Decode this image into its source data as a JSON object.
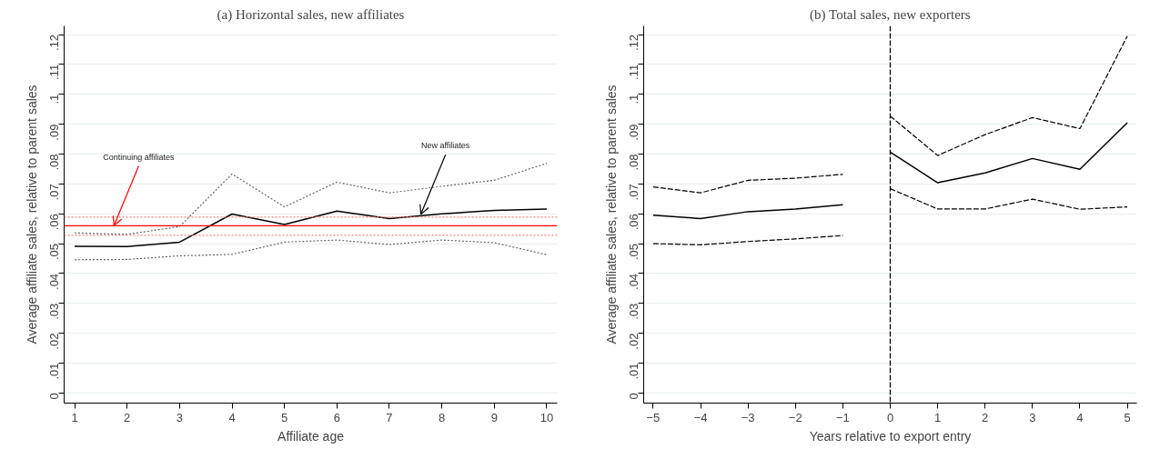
{
  "chart_data": [
    {
      "type": "line",
      "title": "(a) Horizontal sales, new affiliates",
      "xlabel": "Affiliate age",
      "ylabel": "Average affiliate sales, relative to parent sales",
      "x": [
        1,
        2,
        3,
        4,
        5,
        6,
        7,
        8,
        9,
        10
      ],
      "series": [
        {
          "color": "#000000",
          "line_style": "solid",
          "values": [
            0.0491,
            0.049,
            0.0505,
            0.0599,
            0.0564,
            0.0609,
            0.0584,
            0.06,
            0.0611,
            0.0616
          ]
        },
        {
          "color": "#666666",
          "line_style": "dotted",
          "values": [
            0.0536,
            0.0531,
            0.0557,
            0.0733,
            0.0623,
            0.0706,
            0.067,
            0.0692,
            0.0712,
            0.0769
          ]
        },
        {
          "color": "#666666",
          "line_style": "dotted",
          "values": [
            0.0446,
            0.0447,
            0.0459,
            0.0464,
            0.0505,
            0.0512,
            0.0497,
            0.0512,
            0.0503,
            0.0463
          ]
        }
      ],
      "ref_lines": [
        {
          "axis": "y",
          "value": 0.056,
          "color": "#ff0000",
          "line_style": "solid"
        },
        {
          "axis": "y",
          "value": 0.0589,
          "color": "#ff8080",
          "line_style": "dotted"
        },
        {
          "axis": "y",
          "value": 0.0528,
          "color": "#ff8080",
          "line_style": "dotted"
        }
      ],
      "annotations": [
        {
          "text": "Continuing affiliates",
          "x": 1.75,
          "y": 0.056
        },
        {
          "text": "New affiliates",
          "x": 7.6,
          "y": 0.0598
        }
      ],
      "xlim": [
        0.8,
        10.2
      ],
      "xticks": [
        1,
        2,
        3,
        4,
        5,
        6,
        7,
        8,
        9,
        10
      ],
      "ylim": [
        -0.0034,
        0.1229
      ],
      "yticks": [
        0,
        {
          "value": 0.01,
          "label": ".01"
        },
        {
          "value": 0.02,
          "label": ".02"
        },
        {
          "value": 0.03,
          "label": ".03"
        },
        {
          "value": 0.04,
          "label": ".04"
        },
        {
          "value": 0.05,
          "label": ".05"
        },
        {
          "value": 0.06,
          "label": ".06"
        },
        {
          "value": 0.07,
          "label": ".07"
        },
        {
          "value": 0.08,
          "label": ".08"
        },
        {
          "value": 0.09,
          "label": ".09"
        },
        {
          "value": 0.1,
          "label": ".1"
        },
        {
          "value": 0.11,
          "label": ".11"
        },
        {
          "value": 0.12,
          "label": ".12"
        }
      ],
      "grid": "y",
      "marker": "none"
    },
    {
      "type": "line",
      "title": "(b) Total sales, new exporters",
      "xlabel": "Years relative to export entry",
      "ylabel": "Average affiliate sales, relative to parent sales",
      "series": [
        {
          "color": "#000000",
          "line_style": "solid",
          "x": [
            -5,
            -4,
            -3,
            -2,
            -1
          ],
          "values": [
            0.0595,
            0.0584,
            0.0607,
            0.0616,
            0.063
          ]
        },
        {
          "color": "#000000",
          "line_style": "dashed",
          "x": [
            -5,
            -4,
            -3,
            -2,
            -1
          ],
          "values": [
            0.069,
            0.067,
            0.0712,
            0.0719,
            0.0732
          ]
        },
        {
          "color": "#000000",
          "line_style": "dashed",
          "x": [
            -5,
            -4,
            -3,
            -2,
            -1
          ],
          "values": [
            0.05,
            0.0496,
            0.0507,
            0.0516,
            0.0527
          ]
        },
        {
          "color": "#000000",
          "line_style": "solid",
          "x": [
            0,
            1,
            2,
            3,
            4,
            5
          ],
          "values": [
            0.0806,
            0.0704,
            0.0737,
            0.0785,
            0.0749,
            0.0905
          ]
        },
        {
          "color": "#000000",
          "line_style": "dashed",
          "x": [
            0,
            1,
            2,
            3,
            4,
            5
          ],
          "values": [
            0.0927,
            0.0795,
            0.0865,
            0.0922,
            0.0885,
            0.1195
          ]
        },
        {
          "color": "#000000",
          "line_style": "dashed",
          "x": [
            0,
            1,
            2,
            3,
            4,
            5
          ],
          "values": [
            0.0684,
            0.0616,
            0.0616,
            0.0649,
            0.0615,
            0.0623
          ]
        }
      ],
      "ref_lines": [
        {
          "axis": "x",
          "value": 0,
          "color": "#000000",
          "line_style": "dashed"
        }
      ],
      "xlim": [
        -5.2,
        5.2
      ],
      "xticks": [
        {
          "value": -5,
          "label": "−5"
        },
        {
          "value": -4,
          "label": "−4"
        },
        {
          "value": -3,
          "label": "−3"
        },
        {
          "value": -2,
          "label": "−2"
        },
        {
          "value": -1,
          "label": "−1"
        },
        0,
        1,
        2,
        3,
        4,
        5
      ],
      "ylim": [
        -0.0034,
        0.1229
      ],
      "yticks": [
        0,
        {
          "value": 0.01,
          "label": ".01"
        },
        {
          "value": 0.02,
          "label": ".02"
        },
        {
          "value": 0.03,
          "label": ".03"
        },
        {
          "value": 0.04,
          "label": ".04"
        },
        {
          "value": 0.05,
          "label": ".05"
        },
        {
          "value": 0.06,
          "label": ".06"
        },
        {
          "value": 0.07,
          "label": ".07"
        },
        {
          "value": 0.08,
          "label": ".08"
        },
        {
          "value": 0.09,
          "label": ".09"
        },
        {
          "value": 0.1,
          "label": ".1"
        },
        {
          "value": 0.11,
          "label": ".11"
        },
        {
          "value": 0.12,
          "label": ".12"
        }
      ],
      "grid": "y",
      "marker": "none"
    }
  ]
}
